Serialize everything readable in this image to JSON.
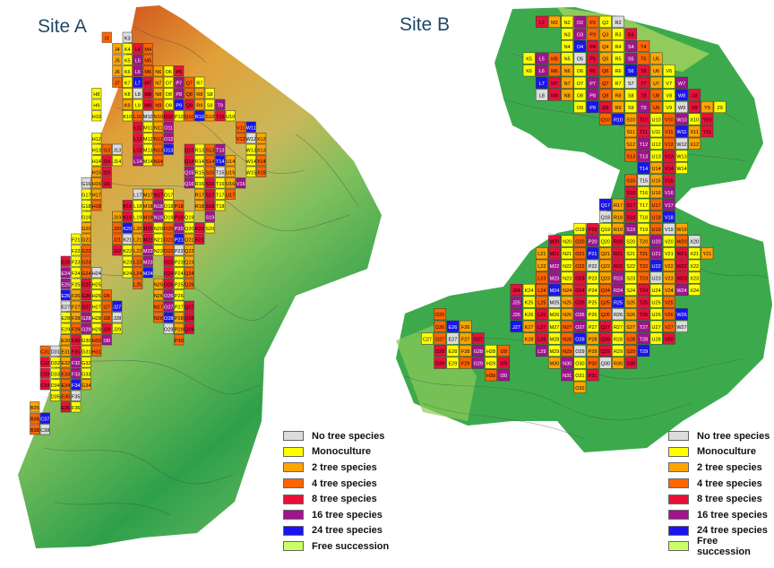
{
  "sites": [
    {
      "title": "Site A"
    },
    {
      "title": "Site B"
    }
  ],
  "legend": [
    {
      "label": "No tree species",
      "color": "#dcdcdc"
    },
    {
      "label": "Monoculture",
      "color": "#ffff00"
    },
    {
      "label": "2 tree species",
      "color": "#ffa500"
    },
    {
      "label": "4 tree species",
      "color": "#ff6600"
    },
    {
      "label": "8 tree species",
      "color": "#e8103a"
    },
    {
      "label": "16 tree species",
      "color": "#a0148c"
    },
    {
      "label": "24 tree species",
      "color": "#1a14f0"
    },
    {
      "label": "Free succession",
      "color": "#ccff66"
    }
  ],
  "plots_a": [
    "I3 K3",
    "J4 K4 L4 M4",
    "J5 K5 L5 M5",
    "J6 K6 L6 M6 N6 O6 P6",
    "J7 K7 L7 M7 N7 O7 P7 Q7 R7",
    "H8 K8 L8 M8 N8 O8 P8 Q8 R8 S8",
    "H9 K9 L9 M9 N9 O9 P9 Q9 R9 S9 T9",
    "H10 K10 L10 M10 N10 O10 P10 Q10 R10 S10 T10 U10",
    "L11 M11 N11 O11 V11 W11",
    "H12 L12 M12 N12 O12 V12 W12 X12",
    "H13 I13 J13 L13 M13 N13 O13 Q13 R13 S13 T13 W13 X13",
    "H14 I14 J14 L14 M14 N14 Q14 R14 S14 T14 U14 W14 X14",
    "H15 I15 Q15 R15 S15 T15 U15 W15 X15",
    "G16 H16 I16 Q16 R16 S16 T16 U16 V16",
    "G17 H17 L17 M17 N17 O17 R17 S17 T17 U17",
    "G18 H18 K18 L18 M18 N18 O18 P18 R18 S18 T18",
    "G19 J19 K19 L19 M19 N19 O19 P19 Q19 S19",
    "G20 J20 K20 L20 M20 N20 O20 P20 Q20 R20 S20",
    "F21 G21 J21 K21 L21 M21 N21 O21 P21 Q21 R21",
    "F22 G22 J22 K22 L22 M22 N22 O22 P22 Q22",
    "E23 F23 G23 K23 L23 M23 O23 P23 Q23",
    "E24 F24 G24 H24 K24 L24 M24 O24 P24 Q24",
    "E25 F25 G25 H25 L25 N25 O25 P25 Q25",
    "E26 F26 G26 H26 I26 N26 O26 P26",
    "E27 F27 G27 H27 I27 J27 N27 O27 P27 Q27",
    "E28 F28 G28 H28 I28 J28 N28 O28 P28 Q28",
    "E29 F29 G29 H29 I29 J29 O29 P29 Q29",
    "E30 F30 G30 H30 I30 P30",
    "C31 D31 E31 F31 G31 H31",
    "C32 D32 E32 F32 G32",
    "C33 D33 E33 F33 G33",
    "C34 D34 E34 F34 G34",
    "D35 E35 F35",
    "B35 E36 F36",
    "B36 C36 C37",
    "B38 C38"
  ],
  "plots_b": [
    "L2 M2 N2 O2 P2 Q2 R2",
    "N3 O3 P3 Q3 R3 S3",
    "N4 O4 P4 Q4 R4 S4 T4",
    "K5 L5 M5 N5 O5 P5 Q5 R5 S5 T5 U5",
    "K6 L6 M6 N6 O6 P6 Q6 R6 S6 T6 U6 V6",
    "L7 M7 N7 O7 P7 Q7 R7 S7 T7 U7 V7 W7",
    "L8 M8 N8 O8 P8 Q8 R8 S8 T8 U8 V8 W8 X8",
    "O9 P9 Q9 R9 S9 T9 U9 V9 W9 X9 Y9 Z9",
    "Q10 R10 S10 T10 U10 V10 W10 X10 Y10",
    "S11 T11 U11 V11 W11 X11 Y11",
    "S12 T12 U12 V12 W12 X12",
    "S13 T13 U13 V13 W13",
    "T14 U14 V14 W14",
    "S15 T15 U15 V15",
    "S16 T16 U16 V16",
    "Q17 R17 S17 T17 U17 V17",
    "Q18 R18 S18 T18 U18 V18",
    "O19 P19 Q19 R19 S19 T19 U19 V19 W19",
    "M20 N20 O20 P20 Q20 R20 S20 T20 U20 V20 W20 X20",
    "L21 M21 N21 O21 P21 Q21 R21 S21 T21 U21 V21 W21 X21 Y21",
    "L22 M22 N22 O22 P22 Q22 R22 S22 T22 U22 V22 W22 X22",
    "L23 M23 N23 O23 P23 Q23 R23 S23 T23 U23 V23 W23 X23",
    "J24 K24 L24 M24 N24 O24 P24 Q24 R24 S24 T24 U24 V24 W24 X24",
    "J25 K25 L25 M25 N25 O25 P25 Q25 R25 S25 T25 U25 V25",
    "D25 J26 K26 L26 M26 N26 O26 P26 Q26 R26 S26 T26 U26 V26 W26",
    "D26 E26 F26 J27 K27 L27 M27 N27 O27 P27 Q27 R27 S27 T27 U27 V27 W27",
    "C27 D27 E27 F27 G27 K28 L28 M28 N28 O28 P28 Q28 R28 S28 T28 U28 V28",
    "D28 E28 F28 G28 H28 I28 L29 M29 N29 O29 P29 Q29 R29 S29 T29",
    "D29 E29 F29 G29 H29 I29 M30 N30 O30 P30 Q30 R30 S30",
    "H30 I30 N31 O31 P31",
    "O32"
  ]
}
